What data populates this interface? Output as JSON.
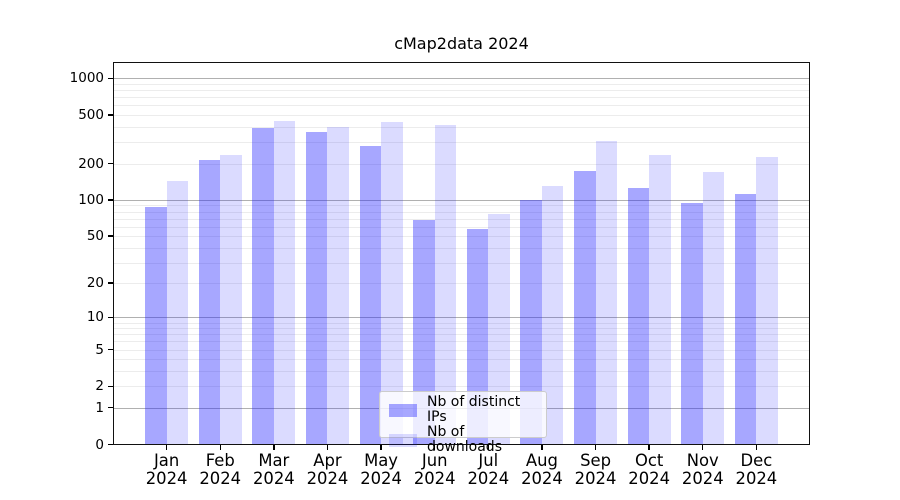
{
  "title": "cMap2data 2024",
  "chart_data": {
    "type": "bar",
    "title": "cMap2data 2024",
    "categories": [
      "Jan",
      "Feb",
      "Mar",
      "Apr",
      "May",
      "Jun",
      "Jul",
      "Aug",
      "Sep",
      "Oct",
      "Nov",
      "Dec"
    ],
    "x_tick_second_line": "2024",
    "series": [
      {
        "name": "Nb of distinct IPs",
        "color": "#a7a7f8",
        "values": [
          88,
          215,
          390,
          363,
          278,
          68,
          57,
          100,
          174,
          126,
          95,
          113
        ]
      },
      {
        "name": "Nb of downloads",
        "color": "#d9d9fb",
        "values": [
          144,
          233,
          450,
          400,
          442,
          415,
          76,
          130,
          306,
          235,
          170,
          226
        ]
      }
    ],
    "yscale": "log1p",
    "ytick_values": [
      0,
      1,
      2,
      5,
      10,
      20,
      50,
      100,
      200,
      500,
      1000
    ],
    "ytick_labels": [
      "0",
      "1",
      "2",
      "5",
      "10",
      "20",
      "50",
      "100",
      "200",
      "500",
      "1000"
    ],
    "ylim": [
      0,
      1400
    ],
    "grid": true,
    "legend_position": "lower center"
  }
}
